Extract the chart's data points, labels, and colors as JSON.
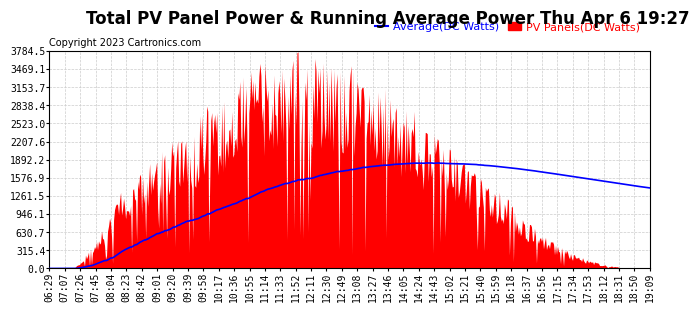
{
  "title": "Total PV Panel Power & Running Average Power Thu Apr 6 19:27",
  "copyright": "Copyright 2023 Cartronics.com",
  "legend_avg": "Average(DC Watts)",
  "legend_pv": "PV Panels(DC Watts)",
  "ylim": [
    0.0,
    3784.5
  ],
  "yticks": [
    0.0,
    315.4,
    630.7,
    946.1,
    1261.5,
    1576.9,
    1892.2,
    2207.6,
    2523.0,
    2838.4,
    3153.7,
    3469.1,
    3784.5
  ],
  "x_labels": [
    "06:29",
    "07:07",
    "07:26",
    "07:45",
    "08:04",
    "08:23",
    "08:42",
    "09:01",
    "09:20",
    "09:39",
    "09:58",
    "10:17",
    "10:36",
    "10:55",
    "11:14",
    "11:33",
    "11:52",
    "12:11",
    "12:30",
    "12:49",
    "13:08",
    "13:27",
    "13:46",
    "14:05",
    "14:24",
    "14:43",
    "15:02",
    "15:21",
    "15:40",
    "15:59",
    "16:18",
    "16:37",
    "16:56",
    "17:15",
    "17:34",
    "17:53",
    "18:12",
    "18:31",
    "18:50",
    "19:09"
  ],
  "pv_color": "#FF0000",
  "avg_color": "#0000FF",
  "bg_color": "#FFFFFF",
  "grid_color": "#CCCCCC",
  "title_fontsize": 12,
  "copyright_fontsize": 7,
  "legend_fontsize": 8,
  "tick_fontsize": 7
}
